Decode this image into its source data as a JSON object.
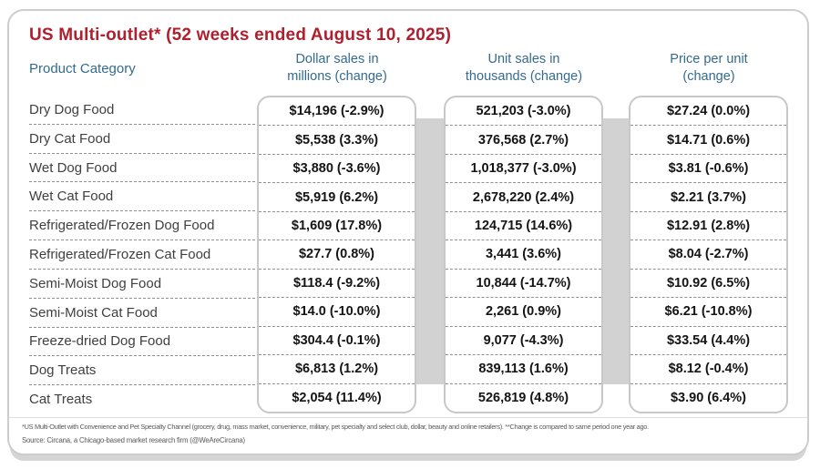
{
  "title": "US Multi-outlet* (52 weeks ended August 10, 2025)",
  "header": {
    "product_category": "Product Category",
    "dollar_line1": "Dollar sales in",
    "dollar_line2": "millions (change)",
    "units_line1": "Unit sales in",
    "units_line2": "thousands (change)",
    "price_line1": "Price per unit",
    "price_line2": "(change)"
  },
  "chart_data": {
    "type": "table",
    "title": "US Multi-outlet* (52 weeks ended August 10, 2025)",
    "columns": [
      "Product Category",
      "Dollar sales in millions (change)",
      "Unit sales in thousands (change)",
      "Price per unit (change)"
    ],
    "rows": [
      {
        "category": "Dry Dog Food",
        "dollar": "$14,196 (-2.9%)",
        "units": "521,203 (-3.0%)",
        "price": "$27.24 (0.0%)"
      },
      {
        "category": "Dry Cat Food",
        "dollar": "$5,538 (3.3%)",
        "units": "376,568 (2.7%)",
        "price": "$14.71 (0.6%)"
      },
      {
        "category": "Wet Dog Food",
        "dollar": "$3,880 (-3.6%)",
        "units": "1,018,377 (-3.0%)",
        "price": "$3.81 (-0.6%)"
      },
      {
        "category": "Wet Cat Food",
        "dollar": "$5,919 (6.2%)",
        "units": "2,678,220 (2.4%)",
        "price": "$2.21 (3.7%)"
      },
      {
        "category": "Refrigerated/Frozen Dog Food",
        "dollar": "$1,609 (17.8%)",
        "units": "124,715 (14.6%)",
        "price": "$12.91 (2.8%)"
      },
      {
        "category": "Refrigerated/Frozen Cat Food",
        "dollar": "$27.7 (0.8%)",
        "units": "3,441 (3.6%)",
        "price": "$8.04 (-2.7%)"
      },
      {
        "category": "Semi-Moist Dog Food",
        "dollar": "$118.4 (-9.2%)",
        "units": "10,844 (-14.7%)",
        "price": "$10.92 (6.5%)"
      },
      {
        "category": "Semi-Moist Cat Food",
        "dollar": "$14.0 (-10.0%)",
        "units": "2,261 (0.9%)",
        "price": "$6.21 (-10.8%)"
      },
      {
        "category": "Freeze-dried Dog Food",
        "dollar": "$304.4 (-0.1%)",
        "units": "9,077 (-4.3%)",
        "price": "$33.54 (4.4%)"
      },
      {
        "category": "Dog Treats",
        "dollar": "$6,813 (1.2%)",
        "units": "839,113 (1.6%)",
        "price": "$8.12 (-0.4%)"
      },
      {
        "category": "Cat Treats",
        "dollar": "$2,054 (11.4%)",
        "units": "526,819 (4.8%)",
        "price": "$3.90 (6.4%)"
      }
    ]
  },
  "footnotes": {
    "line1": "*US Multi-Outlet with Convenience and Pet Specialty Channel (grocery, drug, mass market, convenience, military, pet specialty and select club, dollar, beauty and online retailers). **Change is compared to same period one year ago.",
    "line2": "Source: Circana, a Chicago-based market research firm (@WeAreCircana)"
  },
  "colors": {
    "title_red": "#b01f2e",
    "header_teal": "#336b8e",
    "value_text": "#141414",
    "category_text": "#3f3f3f",
    "card_border": "#c6c9cb",
    "strip_gray": "#d2d2d2"
  }
}
